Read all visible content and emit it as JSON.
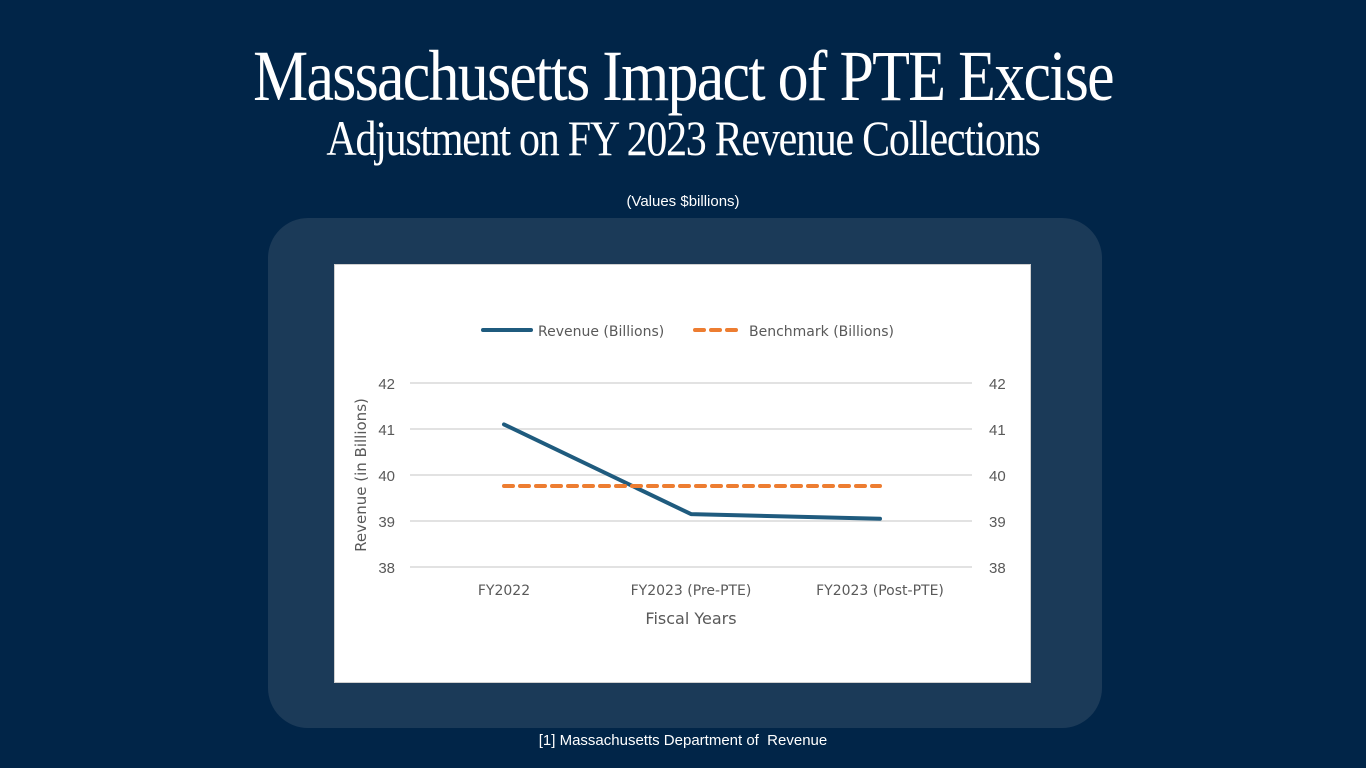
{
  "header": {
    "title_line1": "Massachusetts Impact of PTE Excise",
    "title_line2": "Adjustment on FY 2023 Revenue Collections",
    "subtitle": "(Values $billions)"
  },
  "footer": {
    "source": "[1] Massachusetts Department of  Revenue"
  },
  "colors": {
    "background": "#012548",
    "card": "#1B3A58",
    "revenue": "#1F5B7E",
    "benchmark": "#ED7D31",
    "grid": "#D9D9D9",
    "axis_text": "#595959"
  },
  "chart_data": {
    "type": "line",
    "title": "",
    "xlabel": "Fiscal Years",
    "ylabel": "Revenue (in Billions)",
    "categories": [
      "FY2022",
      "FY2023 (Pre-PTE)",
      "FY2023 (Post-PTE)"
    ],
    "ylim": [
      38,
      42
    ],
    "yticks": [
      "38",
      "39",
      "40",
      "41",
      "42"
    ],
    "secondary_yticks": [
      "38",
      "39",
      "40",
      "41",
      "42"
    ],
    "grid": true,
    "legend_position": "top",
    "series": [
      {
        "name": "Revenue (Billions)",
        "style": "solid",
        "values": [
          41.1,
          39.15,
          39.05
        ]
      },
      {
        "name": "Benchmark (Billions)",
        "style": "dashed",
        "values": [
          39.76,
          39.76,
          39.76
        ]
      }
    ]
  }
}
